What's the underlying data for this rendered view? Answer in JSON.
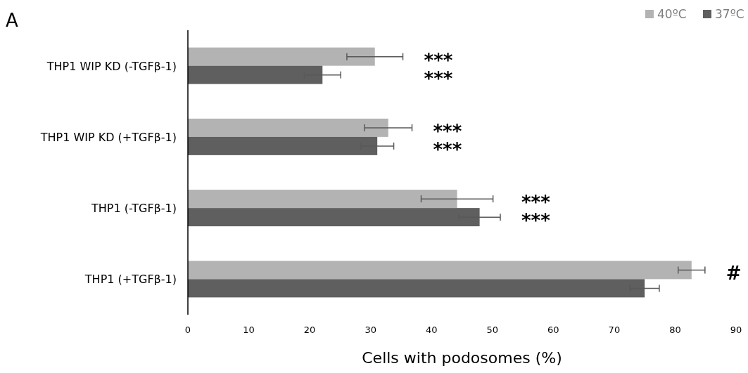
{
  "chart_data": {
    "type": "bar",
    "orientation": "horizontal",
    "categories": [
      "THP1 WIP KD  (-TGFβ-1)",
      "THP1 WIP KD (+TGFβ-1)",
      "THP1 (-TGFβ-1)",
      "THP1 (+TGFβ-1)"
    ],
    "series": [
      {
        "name": "40ºC",
        "color": "#b3b3b3",
        "values": [
          30.7,
          32.9,
          44.2,
          82.7
        ],
        "errors": [
          4.6,
          3.9,
          5.9,
          2.2
        ]
      },
      {
        "name": "37ºC",
        "color": "#5f5f5f",
        "values": [
          22.1,
          31.1,
          47.9,
          75.0
        ],
        "errors": [
          3.0,
          2.7,
          3.4,
          2.4
        ]
      }
    ],
    "xlim": [
      0,
      90
    ],
    "xticks": [
      0,
      10,
      20,
      30,
      40,
      50,
      60,
      70,
      80,
      90
    ],
    "xlabel": "Cells with podosomes (%)",
    "legend": "top right",
    "grid": false,
    "annotations": [
      "A",
      "***",
      "***",
      "***",
      "***",
      "***",
      "***",
      "#"
    ]
  }
}
